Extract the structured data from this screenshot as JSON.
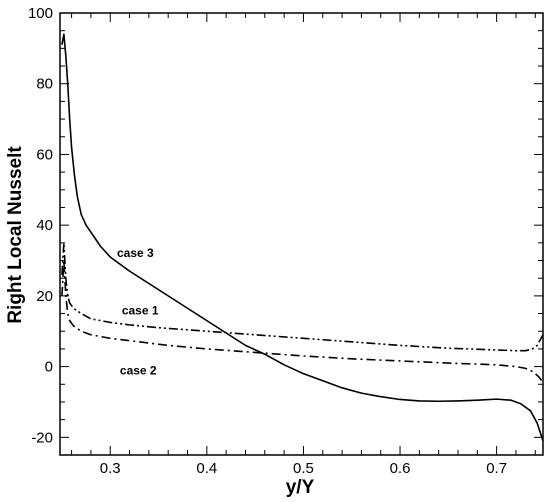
{
  "chart_data": {
    "type": "line",
    "xlabel": "y/Y",
    "ylabel": "Right Local Nusselt",
    "xlim": [
      0.248,
      0.748
    ],
    "ylim": [
      -25,
      100
    ],
    "x_ticks": [
      0.3,
      0.4,
      0.5,
      0.6,
      0.7
    ],
    "x_tick_labels": [
      "0.3",
      "0.4",
      "0.5",
      "0.6",
      "0.7"
    ],
    "y_ticks": [
      -20,
      0,
      20,
      40,
      60,
      80,
      100
    ],
    "y_tick_labels": [
      "-20",
      "0",
      "20",
      "40",
      "60",
      "80",
      "100"
    ],
    "grid": false,
    "legend": "none",
    "series": [
      {
        "name": "case 3",
        "style": "solid",
        "points": [
          [
            0.25,
            91
          ],
          [
            0.252,
            94
          ],
          [
            0.254,
            88
          ],
          [
            0.256,
            80
          ],
          [
            0.258,
            70
          ],
          [
            0.26,
            62
          ],
          [
            0.263,
            54
          ],
          [
            0.266,
            48
          ],
          [
            0.27,
            43
          ],
          [
            0.275,
            40
          ],
          [
            0.28,
            38
          ],
          [
            0.29,
            34
          ],
          [
            0.3,
            31
          ],
          [
            0.32,
            27
          ],
          [
            0.34,
            23.5
          ],
          [
            0.36,
            20
          ],
          [
            0.38,
            16.5
          ],
          [
            0.4,
            13
          ],
          [
            0.42,
            9.5
          ],
          [
            0.44,
            6
          ],
          [
            0.46,
            3.5
          ],
          [
            0.48,
            0.5
          ],
          [
            0.5,
            -2
          ],
          [
            0.52,
            -4
          ],
          [
            0.54,
            -6
          ],
          [
            0.56,
            -7.5
          ],
          [
            0.58,
            -8.5
          ],
          [
            0.6,
            -9.3
          ],
          [
            0.62,
            -9.7
          ],
          [
            0.64,
            -9.8
          ],
          [
            0.66,
            -9.7
          ],
          [
            0.68,
            -9.5
          ],
          [
            0.7,
            -9.2
          ],
          [
            0.715,
            -9.5
          ],
          [
            0.725,
            -10.5
          ],
          [
            0.735,
            -12.5
          ],
          [
            0.742,
            -16
          ],
          [
            0.748,
            -21
          ]
        ]
      },
      {
        "name": "case 1",
        "style": "dash-dot-dot",
        "points": [
          [
            0.25,
            26
          ],
          [
            0.252,
            35
          ],
          [
            0.254,
            25
          ],
          [
            0.256,
            20
          ],
          [
            0.258,
            18
          ],
          [
            0.262,
            16.5
          ],
          [
            0.27,
            15
          ],
          [
            0.28,
            13.5
          ],
          [
            0.3,
            12.5
          ],
          [
            0.32,
            11.8
          ],
          [
            0.35,
            11
          ],
          [
            0.4,
            10
          ],
          [
            0.45,
            9
          ],
          [
            0.5,
            8
          ],
          [
            0.55,
            7
          ],
          [
            0.6,
            6
          ],
          [
            0.65,
            5.2
          ],
          [
            0.7,
            4.7
          ],
          [
            0.72,
            4.5
          ],
          [
            0.73,
            4.5
          ],
          [
            0.737,
            5
          ],
          [
            0.742,
            6
          ],
          [
            0.745,
            7.5
          ],
          [
            0.748,
            9
          ]
        ]
      },
      {
        "name": "case 2",
        "style": "dash-dot",
        "points": [
          [
            0.25,
            20
          ],
          [
            0.252,
            30
          ],
          [
            0.254,
            20
          ],
          [
            0.256,
            15
          ],
          [
            0.258,
            13
          ],
          [
            0.262,
            11.5
          ],
          [
            0.27,
            10
          ],
          [
            0.28,
            9
          ],
          [
            0.3,
            8
          ],
          [
            0.33,
            7
          ],
          [
            0.36,
            6
          ],
          [
            0.4,
            5
          ],
          [
            0.45,
            4
          ],
          [
            0.5,
            3
          ],
          [
            0.55,
            2.2
          ],
          [
            0.6,
            1.6
          ],
          [
            0.65,
            1
          ],
          [
            0.7,
            0.5
          ],
          [
            0.72,
            0
          ],
          [
            0.73,
            -0.5
          ],
          [
            0.738,
            -1.5
          ],
          [
            0.744,
            -3
          ],
          [
            0.748,
            -4.5
          ]
        ]
      }
    ],
    "annotations": [
      {
        "text": "case 3",
        "x": 0.307,
        "y": 31,
        "series": "case 3"
      },
      {
        "text": "case 1",
        "x": 0.312,
        "y": 14.8,
        "series": "case 1"
      },
      {
        "text": "case 2",
        "x": 0.31,
        "y": -2.2,
        "series": "case 2"
      }
    ]
  }
}
